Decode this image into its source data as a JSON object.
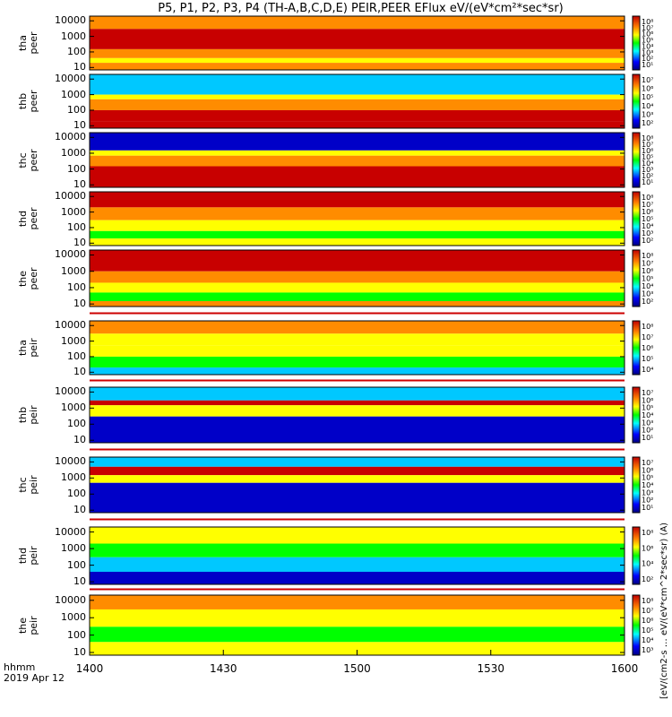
{
  "title": "P5, P1, P2, P3, P4 (TH-A,B,C,D,E) PEIR,PEER EFlux eV/(eV*cm²*sec*sr)",
  "colorbar_title": "[eV/(cm2-s  … eV/(eV*cm^2*sec*sr) (A)",
  "time_legend": {
    "line1": "hhmm",
    "line2": "2019 Apr 12"
  },
  "colors": {
    "max": "#c80000",
    "high": "#ff8c00",
    "mid": "#ffff00",
    "low": "#00ff00",
    "lower": "#00c8ff",
    "min": "#0000c8"
  },
  "chart_data": {
    "type": "heatmap",
    "xlabel": "hhmm",
    "date": "2019 Apr 12",
    "x_ticks": [
      "1400",
      "1430",
      "1500",
      "1530",
      "1600"
    ],
    "xlim": [
      "1400",
      "1600"
    ],
    "y_scale": "log",
    "ylim": [
      7,
      20000
    ],
    "y_ticks": [
      "10000",
      "1000",
      "100",
      "10"
    ],
    "panels": [
      {
        "probe": "tha",
        "species": "peer",
        "cbar_ticks": [
          "10⁸",
          "10⁷",
          "10⁶",
          "10⁵",
          "10⁴",
          "10³",
          "10²",
          "10¹"
        ],
        "bands": [
          {
            "lo": 3000,
            "hi": 20000,
            "level": "high"
          },
          {
            "lo": 150,
            "hi": 3000,
            "level": "max"
          },
          {
            "lo": 40,
            "hi": 150,
            "level": "high"
          },
          {
            "lo": 20,
            "hi": 40,
            "level": "mid"
          },
          {
            "lo": 7,
            "hi": 20,
            "level": "high"
          }
        ]
      },
      {
        "probe": "thb",
        "species": "peer",
        "cbar_ticks": [
          "10⁷",
          "10⁶",
          "10⁵",
          "10⁴",
          "10³",
          "10²"
        ],
        "bands": [
          {
            "lo": 1000,
            "hi": 20000,
            "level": "lower"
          },
          {
            "lo": 500,
            "hi": 1000,
            "level": "mid"
          },
          {
            "lo": 100,
            "hi": 500,
            "level": "high"
          },
          {
            "lo": 20,
            "hi": 100,
            "level": "max"
          },
          {
            "lo": 7,
            "hi": 20,
            "level": "max"
          }
        ]
      },
      {
        "probe": "thc",
        "species": "peer",
        "cbar_ticks": [
          "10⁸",
          "10⁷",
          "10⁶",
          "10⁵",
          "10⁴",
          "10³",
          "10²",
          "10¹"
        ],
        "bands": [
          {
            "lo": 1500,
            "hi": 20000,
            "level": "min"
          },
          {
            "lo": 700,
            "hi": 1500,
            "level": "mid"
          },
          {
            "lo": 150,
            "hi": 700,
            "level": "high"
          },
          {
            "lo": 7,
            "hi": 150,
            "level": "max"
          }
        ]
      },
      {
        "probe": "thd",
        "species": "peer",
        "cbar_ticks": [
          "10⁸",
          "10⁷",
          "10⁶",
          "10⁵",
          "10⁴",
          "10³",
          "10²"
        ],
        "bands": [
          {
            "lo": 2000,
            "hi": 20000,
            "level": "max"
          },
          {
            "lo": 300,
            "hi": 2000,
            "level": "high"
          },
          {
            "lo": 60,
            "hi": 300,
            "level": "mid"
          },
          {
            "lo": 20,
            "hi": 60,
            "level": "low"
          },
          {
            "lo": 7,
            "hi": 20,
            "level": "mid"
          }
        ]
      },
      {
        "probe": "the",
        "species": "peer",
        "cbar_ticks": [
          "10⁸",
          "10⁷",
          "10⁶",
          "10⁵",
          "10⁴",
          "10³",
          "10²"
        ],
        "bands": [
          {
            "lo": 1000,
            "hi": 20000,
            "level": "max"
          },
          {
            "lo": 200,
            "hi": 1000,
            "level": "high"
          },
          {
            "lo": 50,
            "hi": 200,
            "level": "mid"
          },
          {
            "lo": 15,
            "hi": 50,
            "level": "low"
          },
          {
            "lo": 7,
            "hi": 15,
            "level": "high"
          }
        ]
      },
      {
        "probe": "tha",
        "species": "peir",
        "cbar_ticks": [
          "10⁸",
          "10⁷",
          "10⁶",
          "10⁵",
          "10⁴"
        ],
        "bands": [
          {
            "lo": 3000,
            "hi": 20000,
            "level": "high"
          },
          {
            "lo": 500,
            "hi": 3000,
            "level": "mid"
          },
          {
            "lo": 100,
            "hi": 500,
            "level": "mid"
          },
          {
            "lo": 20,
            "hi": 100,
            "level": "low"
          },
          {
            "lo": 7,
            "hi": 20,
            "level": "lower"
          }
        ]
      },
      {
        "probe": "thb",
        "species": "peir",
        "cbar_ticks": [
          "10⁷",
          "10⁶",
          "10⁵",
          "10⁴",
          "10³",
          "10²",
          "10¹"
        ],
        "bands": [
          {
            "lo": 3000,
            "hi": 20000,
            "level": "lower"
          },
          {
            "lo": 1500,
            "hi": 3000,
            "level": "max"
          },
          {
            "lo": 300,
            "hi": 1500,
            "level": "mid"
          },
          {
            "lo": 7,
            "hi": 300,
            "level": "min"
          }
        ]
      },
      {
        "probe": "thc",
        "species": "peir",
        "cbar_ticks": [
          "10⁷",
          "10⁶",
          "10⁵",
          "10⁴",
          "10³",
          "10²",
          "10¹"
        ],
        "bands": [
          {
            "lo": 5000,
            "hi": 20000,
            "level": "lower"
          },
          {
            "lo": 1500,
            "hi": 5000,
            "level": "max"
          },
          {
            "lo": 500,
            "hi": 1500,
            "level": "mid"
          },
          {
            "lo": 7,
            "hi": 500,
            "level": "min"
          }
        ]
      },
      {
        "probe": "thd",
        "species": "peir",
        "cbar_ticks": [
          "10⁸",
          "10⁶",
          "10⁴",
          "10²"
        ],
        "bands": [
          {
            "lo": 2000,
            "hi": 20000,
            "level": "mid"
          },
          {
            "lo": 300,
            "hi": 2000,
            "level": "low"
          },
          {
            "lo": 40,
            "hi": 300,
            "level": "lower"
          },
          {
            "lo": 7,
            "hi": 40,
            "level": "min"
          }
        ]
      },
      {
        "probe": "the",
        "species": "peir",
        "cbar_ticks": [
          "10⁸",
          "10⁷",
          "10⁶",
          "10⁵",
          "10⁴",
          "10³"
        ],
        "bands": [
          {
            "lo": 3000,
            "hi": 20000,
            "level": "high"
          },
          {
            "lo": 300,
            "hi": 3000,
            "level": "mid"
          },
          {
            "lo": 40,
            "hi": 300,
            "level": "low"
          },
          {
            "lo": 7,
            "hi": 40,
            "level": "mid"
          }
        ]
      }
    ]
  }
}
